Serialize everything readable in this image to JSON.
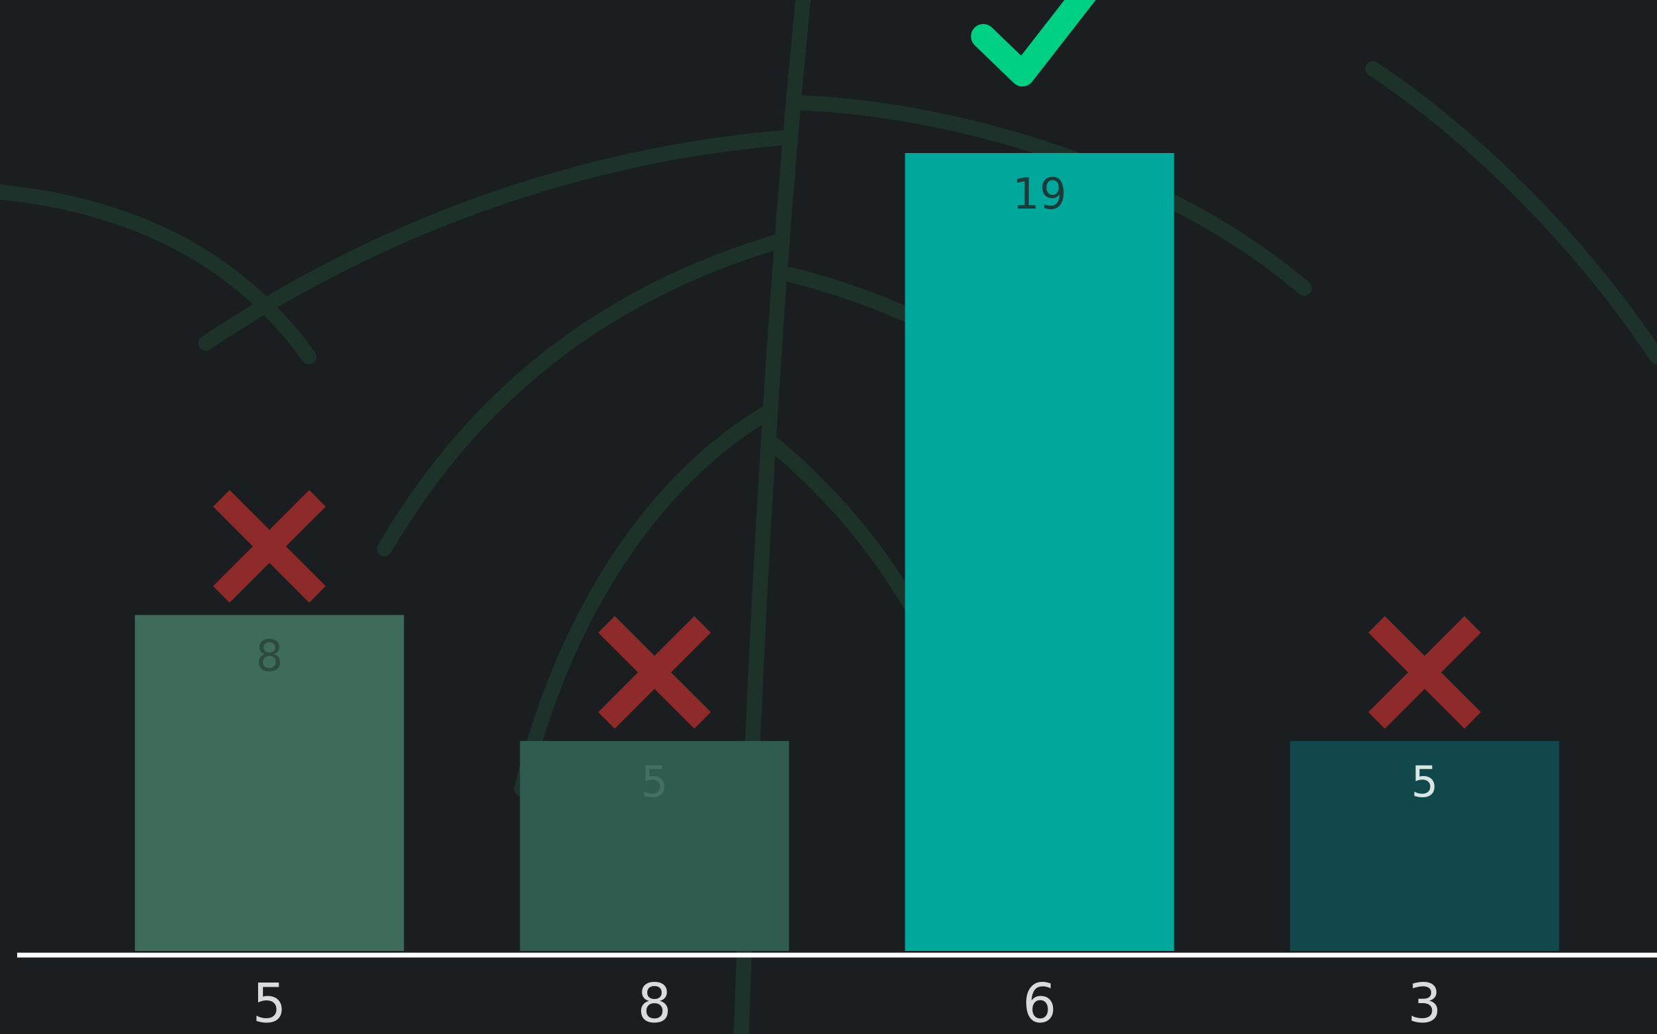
{
  "chart_data": {
    "type": "bar",
    "categories": [
      "5",
      "8",
      "6",
      "3"
    ],
    "values": [
      8,
      5,
      19,
      5
    ],
    "colors": [
      "#3f6b5b",
      "#2f5b50",
      "#00a89c",
      "#11484b"
    ],
    "label_colors": [
      "#2c4a3f",
      "#466e62",
      "#1b3a3a",
      "#d9e6e4"
    ],
    "correct": [
      false,
      false,
      true,
      false
    ],
    "ylim": [
      0,
      19
    ]
  }
}
